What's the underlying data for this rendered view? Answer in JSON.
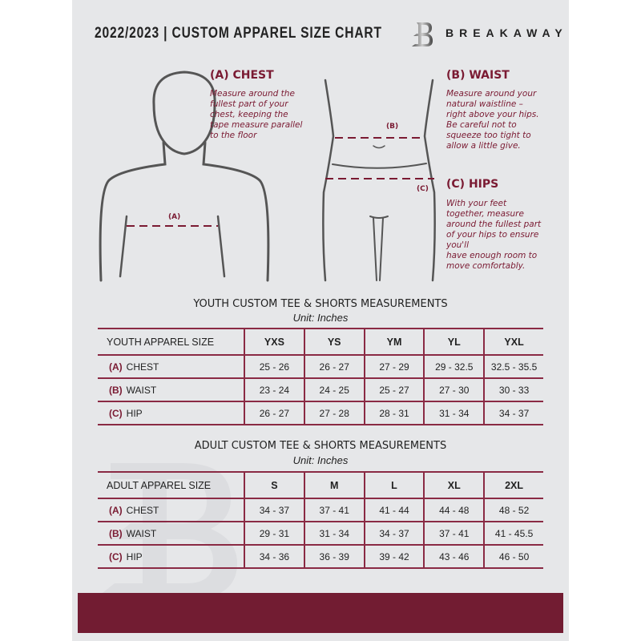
{
  "header": {
    "title": "2022/2023  |  CUSTOM APPAREL SIZE CHART",
    "brand": "BREAKAWAY",
    "logo_letter": "B"
  },
  "colors": {
    "accent": "#7a1a32",
    "band": "#721c32",
    "page": "#e6e7e9"
  },
  "guides": {
    "chest": {
      "heading": "(A) CHEST",
      "lines": [
        "Measure around the",
        "fullest part of your",
        "chest, keeping the",
        "tape measure parallel",
        "to the floor"
      ],
      "marker": "(A)"
    },
    "waist": {
      "heading": "(B) WAIST",
      "lines": [
        "Measure around your",
        "natural waistline –",
        "right above your hips.",
        "Be careful not to",
        "squeeze too tight to",
        "allow a little give."
      ],
      "marker": "(B)"
    },
    "hips": {
      "heading": "(C) HIPS",
      "lines": [
        "With your feet",
        "together, measure",
        "around the fullest part",
        "of your hips to ensure",
        "you'll",
        "have enough room to",
        "move comfortably."
      ],
      "marker": "(C)"
    }
  },
  "youth": {
    "title": "YOUTH CUSTOM TEE & SHORTS MEASUREMENTS",
    "unit": "Unit: Inches",
    "header": [
      "YOUTH APPAREL SIZE",
      "YXS",
      "YS",
      "YM",
      "YL",
      "YXL"
    ],
    "rows": [
      {
        "label": "(A)",
        "name": "CHEST",
        "values": [
          "25 - 26",
          "26 - 27",
          "27 - 29",
          "29 - 32.5",
          "32.5 - 35.5"
        ]
      },
      {
        "label": "(B)",
        "name": "WAIST",
        "values": [
          "23 - 24",
          "24 - 25",
          "25 - 27",
          "27 - 30",
          "30 - 33"
        ]
      },
      {
        "label": "(C)",
        "name": "HIP",
        "values": [
          "26 - 27",
          "27 - 28",
          "28 - 31",
          "31 - 34",
          "34 - 37"
        ]
      }
    ]
  },
  "adult": {
    "title": "ADULT CUSTOM TEE & SHORTS MEASUREMENTS",
    "unit": "Unit: Inches",
    "header": [
      "ADULT APPAREL SIZE",
      "S",
      "M",
      "L",
      "XL",
      "2XL"
    ],
    "rows": [
      {
        "label": "(A)",
        "name": "CHEST",
        "values": [
          "34 - 37",
          "37 - 41",
          "41 - 44",
          "44 - 48",
          "48 - 52"
        ]
      },
      {
        "label": "(B)",
        "name": "WAIST",
        "values": [
          "29 - 31",
          "31 - 34",
          "34 - 37",
          "37 - 41",
          "41 - 45.5"
        ]
      },
      {
        "label": "(C)",
        "name": "HIP",
        "values": [
          "34 - 36",
          "36 - 39",
          "39 - 42",
          "43 - 46",
          "46 - 50"
        ]
      }
    ]
  }
}
